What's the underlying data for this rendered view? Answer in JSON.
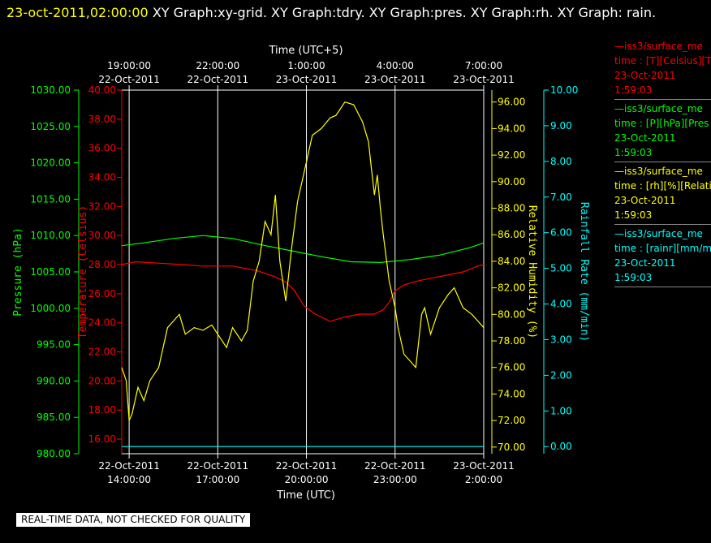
{
  "header": {
    "timestamp": "23-oct-2011,02:00:00",
    "title_text": "XY Graph:xy-grid.  XY Graph:tdry.  XY Graph:pres.  XY Graph:rh.  XY Graph: rain."
  },
  "footer": {
    "note": "REAL-TIME DATA, NOT CHECKED FOR QUALITY"
  },
  "colors": {
    "temperature": "#ff0000",
    "pressure": "#00ff00",
    "humidity": "#ffff00",
    "rain": "#00ffff",
    "grid": "#ffffff"
  },
  "legend": [
    {
      "line1": "—iss3/surface_me",
      "line2": "time : [T][Celsius][T",
      "line3": "23-Oct-2011",
      "line4": "1:59:03",
      "color": "#ff0000"
    },
    {
      "line1": "—iss3/surface_me",
      "line2": "time : [P][hPa][Pres",
      "line3": "23-Oct-2011",
      "line4": "1:59:03",
      "color": "#00ff00"
    },
    {
      "line1": "—iss3/surface_me",
      "line2": "time : [rh][%][Relati",
      "line3": "23-Oct-2011",
      "line4": "1:59:03",
      "color": "#ffff00"
    },
    {
      "line1": "—iss3/surface_me",
      "line2": "time : [rainr][mm/mi",
      "line3": "23-Oct-2011",
      "line4": "1:59:03",
      "color": "#00ffff"
    }
  ],
  "chart_data": {
    "type": "line",
    "grid": true,
    "x_range_utc_hours": [
      13.75,
      26.0
    ],
    "x_bottom_label": "Time (UTC)",
    "x_top_label": "Time (UTC+5)",
    "x_bottom_ticks": [
      {
        "t": 14,
        "date": "22-Oct-2011",
        "time": "14:00:00"
      },
      {
        "t": 17,
        "date": "22-Oct-2011",
        "time": "17:00:00"
      },
      {
        "t": 20,
        "date": "22-Oct-2011",
        "time": "20:00:00"
      },
      {
        "t": 23,
        "date": "22-Oct-2011",
        "time": "23:00:00"
      },
      {
        "t": 26,
        "date": "23-Oct-2011",
        "time": "2:00:00"
      }
    ],
    "x_top_ticks": [
      {
        "t": 14,
        "time": "19:00:00",
        "date": "22-Oct-2011"
      },
      {
        "t": 17,
        "time": "22:00:00",
        "date": "22-Oct-2011"
      },
      {
        "t": 20,
        "time": "1:00:00",
        "date": "23-Oct-2011"
      },
      {
        "t": 23,
        "time": "4:00:00",
        "date": "23-Oct-2011"
      },
      {
        "t": 26,
        "time": "7:00:00",
        "date": "23-Oct-2011"
      }
    ],
    "axes": {
      "pressure": {
        "label": "Pressure (hPa)",
        "range": [
          980,
          1030
        ],
        "ticks": [
          "980.00",
          "985.00",
          "990.00",
          "995.00",
          "1000.00",
          "1005.00",
          "1010.00",
          "1015.00",
          "1020.00",
          "1025.00",
          "1030.00"
        ]
      },
      "temperature": {
        "label": "Temperature (Celsius)",
        "range": [
          15,
          40
        ],
        "ticks": [
          "16.00",
          "18.00",
          "20.00",
          "22.00",
          "24.00",
          "26.00",
          "28.00",
          "30.00",
          "32.00",
          "34.00",
          "36.00",
          "38.00",
          "40.00"
        ]
      },
      "humidity": {
        "label": "Relative Humidity (%)",
        "range": [
          69.5,
          96.9
        ],
        "ticks": [
          "70.00",
          "72.00",
          "74.00",
          "76.00",
          "78.00",
          "80.00",
          "82.00",
          "84.00",
          "86.00",
          "88.00",
          "90.00",
          "92.00",
          "94.00",
          "96.00"
        ]
      },
      "rain": {
        "label": "Rainfall Rate (mm/min)",
        "range": [
          -0.2,
          10
        ],
        "ticks": [
          "0.00",
          "1.00",
          "2.00",
          "3.00",
          "4.00",
          "5.00",
          "6.00",
          "7.00",
          "8.00",
          "9.00",
          "10.00"
        ]
      }
    },
    "series": [
      {
        "name": "Pressure (hPa)",
        "axis": "pressure",
        "x": [
          13.75,
          14.5,
          15.5,
          16.5,
          17.5,
          18.5,
          19.5,
          20.5,
          21.5,
          22.5,
          23.5,
          24.5,
          25.5,
          26.0
        ],
        "y": [
          1008.6,
          1009.0,
          1009.6,
          1010.0,
          1009.6,
          1008.7,
          1007.9,
          1007.1,
          1006.4,
          1006.3,
          1006.7,
          1007.3,
          1008.3,
          1009.0
        ]
      },
      {
        "name": "Temperature (Celsius)",
        "axis": "temperature",
        "x": [
          13.75,
          14.2,
          15.0,
          15.8,
          16.5,
          17.5,
          18.3,
          18.9,
          19.3,
          19.6,
          19.9,
          20.3,
          20.8,
          21.3,
          21.8,
          22.3,
          22.6,
          22.8,
          23.0,
          23.3,
          23.8,
          24.3,
          24.8,
          25.3,
          25.8,
          26.0
        ],
        "y": [
          28.0,
          28.2,
          28.1,
          28.0,
          27.9,
          27.9,
          27.6,
          27.2,
          26.8,
          26.2,
          25.2,
          24.6,
          24.1,
          24.4,
          24.6,
          24.6,
          24.9,
          25.4,
          26.2,
          26.6,
          26.9,
          27.1,
          27.3,
          27.5,
          27.9,
          28.0
        ]
      },
      {
        "name": "Relative Humidity (%)",
        "axis": "humidity",
        "x": [
          13.75,
          13.9,
          14.0,
          14.1,
          14.3,
          14.5,
          14.7,
          15.0,
          15.3,
          15.5,
          15.7,
          15.9,
          16.2,
          16.5,
          16.8,
          17.0,
          17.3,
          17.5,
          17.8,
          18.0,
          18.2,
          18.4,
          18.6,
          18.8,
          18.95,
          19.1,
          19.3,
          19.5,
          19.7,
          19.85,
          20.0,
          20.2,
          20.5,
          20.8,
          21.0,
          21.3,
          21.6,
          21.9,
          22.1,
          22.2,
          22.3,
          22.4,
          22.5,
          22.6,
          22.8,
          23.0,
          23.1,
          23.3,
          23.5,
          23.7,
          23.9,
          24.0,
          24.2,
          24.5,
          24.8,
          25.0,
          25.3,
          25.6,
          25.8,
          26.0
        ],
        "y": [
          76.0,
          75.0,
          72.0,
          72.5,
          74.5,
          73.5,
          75.0,
          76.0,
          79.0,
          79.5,
          80.0,
          78.5,
          79.0,
          78.8,
          79.2,
          78.5,
          77.5,
          79.0,
          78.0,
          78.8,
          82.5,
          84.0,
          87.0,
          86.0,
          89.0,
          84.0,
          81.0,
          85.0,
          88.5,
          90.0,
          91.5,
          93.5,
          94.0,
          94.8,
          95.0,
          96.0,
          95.8,
          94.5,
          93.0,
          91.0,
          89.0,
          90.5,
          88.0,
          86.0,
          82.5,
          80.5,
          79.0,
          77.0,
          76.5,
          76.0,
          80.0,
          80.5,
          78.5,
          80.5,
          81.5,
          82.0,
          80.5,
          80.0,
          79.5,
          79.0
        ]
      },
      {
        "name": "Rainfall Rate (mm/min)",
        "axis": "rain",
        "x": [
          13.75,
          26.0
        ],
        "y": [
          0.0,
          0.0
        ]
      }
    ]
  }
}
